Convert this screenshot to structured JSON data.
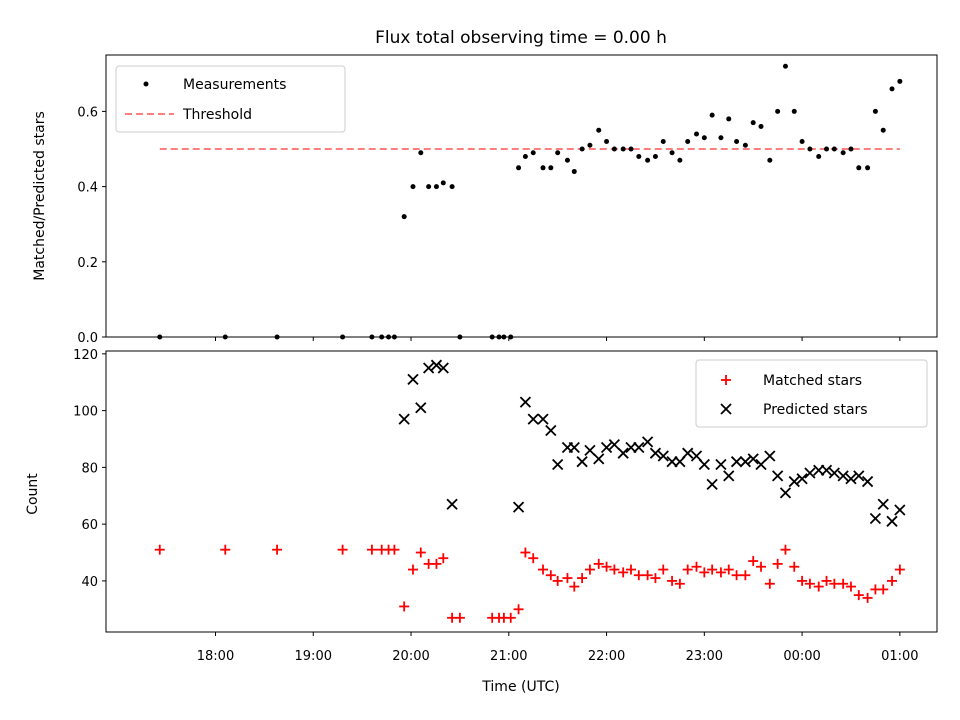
{
  "colors": {
    "measurements": "#000000",
    "threshold": "#ff7f7f",
    "matched": "#ff0000",
    "predicted": "#000000"
  },
  "chart_data": [
    {
      "type": "scatter",
      "title": "Flux total observing time = 0.00 h",
      "xlabel": "",
      "ylabel": "Matched/Predicted stars",
      "xlim": [
        16.88,
        25.38
      ],
      "ylim": [
        0,
        0.75
      ],
      "grid": false,
      "legend_position": "top-left",
      "yticks": [
        0,
        0.2,
        0.4,
        0.6
      ],
      "ytick_labels": [
        "0.0",
        "0.2",
        "0.4",
        "0.6"
      ],
      "series": [
        {
          "name": "Measurements",
          "marker": "dot",
          "x": [
            17.43,
            18.1,
            18.63,
            19.3,
            19.6,
            19.7,
            19.77,
            19.83,
            19.93,
            20.02,
            20.1,
            20.18,
            20.26,
            20.33,
            20.42,
            20.5,
            20.83,
            20.9,
            20.95,
            21.02,
            21.1,
            21.17,
            21.25,
            21.35,
            21.43,
            21.5,
            21.6,
            21.67,
            21.75,
            21.83,
            21.92,
            22.0,
            22.08,
            22.17,
            22.25,
            22.33,
            22.42,
            22.5,
            22.58,
            22.67,
            22.75,
            22.83,
            22.92,
            23.0,
            23.08,
            23.17,
            23.25,
            23.33,
            23.42,
            23.5,
            23.58,
            23.67,
            23.75,
            23.83,
            23.92,
            24.0,
            24.08,
            24.17,
            24.25,
            24.33,
            24.42,
            24.5,
            24.58,
            24.67,
            24.75,
            24.83,
            24.92,
            25.0
          ],
          "y": [
            0.0,
            0.0,
            0.0,
            0.0,
            0.0,
            0.0,
            0.0,
            0.0,
            0.32,
            0.4,
            0.49,
            0.4,
            0.4,
            0.41,
            0.4,
            0.0,
            0.0,
            0.0,
            0.0,
            0.0,
            0.45,
            0.48,
            0.49,
            0.45,
            0.45,
            0.49,
            0.47,
            0.44,
            0.5,
            0.51,
            0.55,
            0.52,
            0.5,
            0.5,
            0.5,
            0.48,
            0.47,
            0.48,
            0.52,
            0.49,
            0.47,
            0.52,
            0.54,
            0.53,
            0.59,
            0.53,
            0.58,
            0.52,
            0.51,
            0.57,
            0.56,
            0.47,
            0.6,
            0.72,
            0.6,
            0.52,
            0.5,
            0.48,
            0.5,
            0.5,
            0.49,
            0.5,
            0.45,
            0.45,
            0.6,
            0.55,
            0.66,
            0.68
          ]
        },
        {
          "name": "Threshold",
          "marker": "dashed-line",
          "x": [
            17.43,
            25.0
          ],
          "y": [
            0.5,
            0.5
          ]
        }
      ]
    },
    {
      "type": "scatter",
      "title": "",
      "xlabel": "Time (UTC)",
      "ylabel": "Count",
      "xlim": [
        16.88,
        25.38
      ],
      "ylim": [
        22,
        121
      ],
      "grid": false,
      "legend_position": "top-right",
      "xticks": [
        18,
        19,
        20,
        21,
        22,
        23,
        24,
        25
      ],
      "xtick_labels": [
        "18:00",
        "19:00",
        "20:00",
        "21:00",
        "22:00",
        "23:00",
        "00:00",
        "01:00"
      ],
      "yticks": [
        40,
        60,
        80,
        100,
        120
      ],
      "ytick_labels": [
        "40",
        "60",
        "80",
        "100",
        "120"
      ],
      "series": [
        {
          "name": "Matched stars",
          "marker": "plus",
          "x": [
            17.43,
            18.1,
            18.63,
            19.3,
            19.6,
            19.7,
            19.77,
            19.83,
            19.93,
            20.02,
            20.1,
            20.18,
            20.26,
            20.33,
            20.42,
            20.5,
            20.83,
            20.9,
            20.95,
            21.02,
            21.1,
            21.17,
            21.25,
            21.35,
            21.43,
            21.5,
            21.6,
            21.67,
            21.75,
            21.83,
            21.92,
            22.0,
            22.08,
            22.17,
            22.25,
            22.33,
            22.42,
            22.5,
            22.58,
            22.67,
            22.75,
            22.83,
            22.92,
            23.0,
            23.08,
            23.17,
            23.25,
            23.33,
            23.42,
            23.5,
            23.58,
            23.67,
            23.75,
            23.83,
            23.92,
            24.0,
            24.08,
            24.17,
            24.25,
            24.33,
            24.42,
            24.5,
            24.58,
            24.67,
            24.75,
            24.83,
            24.92,
            25.0
          ],
          "y": [
            51,
            51,
            51,
            51,
            51,
            51,
            51,
            51,
            31,
            44,
            50,
            46,
            46,
            48,
            27,
            27,
            27,
            27,
            27,
            27,
            30,
            50,
            48,
            44,
            42,
            40,
            41,
            38,
            41,
            44,
            46,
            45,
            44,
            43,
            44,
            42,
            42,
            41,
            44,
            40,
            39,
            44,
            45,
            43,
            44,
            43,
            44,
            42,
            42,
            47,
            45,
            39,
            46,
            51,
            45,
            40,
            39,
            38,
            40,
            39,
            39,
            38,
            35,
            34,
            37,
            37,
            40,
            44
          ]
        },
        {
          "name": "Predicted stars",
          "marker": "x",
          "x": [
            19.93,
            20.02,
            20.1,
            20.18,
            20.26,
            20.33,
            20.42,
            21.1,
            21.17,
            21.25,
            21.35,
            21.43,
            21.5,
            21.6,
            21.67,
            21.75,
            21.83,
            21.92,
            22.0,
            22.08,
            22.17,
            22.25,
            22.33,
            22.42,
            22.5,
            22.58,
            22.67,
            22.75,
            22.83,
            22.92,
            23.0,
            23.08,
            23.17,
            23.25,
            23.33,
            23.42,
            23.5,
            23.58,
            23.67,
            23.75,
            23.83,
            23.92,
            24.0,
            24.08,
            24.17,
            24.25,
            24.33,
            24.42,
            24.5,
            24.58,
            24.67,
            24.75,
            24.83,
            24.92,
            25.0
          ],
          "y": [
            97,
            111,
            101,
            115,
            116,
            115,
            67,
            66,
            103,
            97,
            97,
            93,
            81,
            87,
            87,
            82,
            86,
            83,
            87,
            88,
            85,
            87,
            87,
            89,
            85,
            84,
            82,
            82,
            85,
            84,
            81,
            74,
            81,
            77,
            82,
            82,
            83,
            81,
            84,
            77,
            71,
            75,
            76,
            78,
            79,
            79,
            78,
            77,
            76,
            77,
            75,
            62,
            67,
            61,
            65
          ]
        }
      ]
    }
  ]
}
